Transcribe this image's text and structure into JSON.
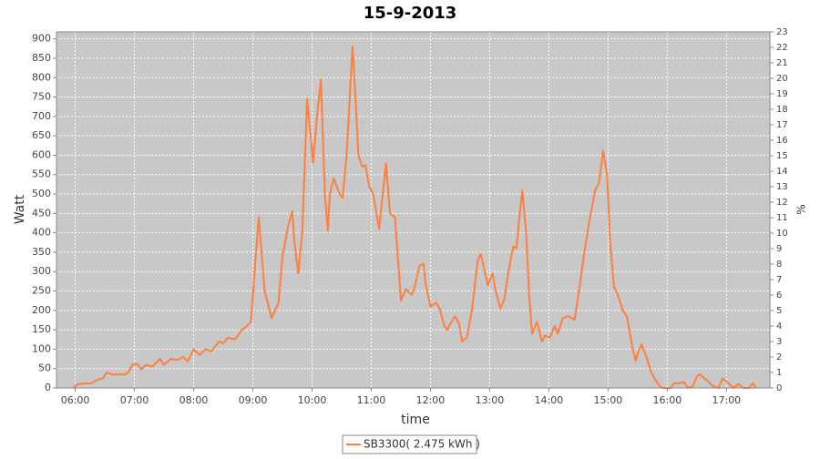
{
  "chart_data": {
    "type": "line",
    "title": "15-9-2013",
    "xlabel": "time",
    "ylabel": "Watt",
    "y2label": "%",
    "x": [
      "05:58",
      "06:03",
      "06:12",
      "06:17",
      "06:21",
      "06:28",
      "06:32",
      "06:37",
      "06:44",
      "06:51",
      "06:54",
      "06:58",
      "07:03",
      "07:07",
      "07:12",
      "07:18",
      "07:26",
      "07:30",
      "07:37",
      "07:44",
      "07:49",
      "07:54",
      "08:00",
      "08:06",
      "08:12",
      "08:18",
      "08:26",
      "08:30",
      "08:35",
      "08:42",
      "08:49",
      "08:54",
      "08:58",
      "09:06",
      "09:12",
      "09:19",
      "09:26",
      "09:30",
      "09:36",
      "09:40",
      "09:42",
      "09:46",
      "09:50",
      "09:53",
      "09:55",
      "10:01",
      "10:05",
      "10:09",
      "10:13",
      "10:16",
      "10:18",
      "10:22",
      "10:28",
      "10:31",
      "10:35",
      "10:41",
      "10:44",
      "10:47",
      "10:51",
      "10:54",
      "10:58",
      "11:02",
      "11:08",
      "11:12",
      "11:15",
      "11:19",
      "11:24",
      "11:28",
      "11:30",
      "11:35",
      "11:41",
      "11:44",
      "11:49",
      "11:53",
      "11:55",
      "12:00",
      "12:06",
      "12:10",
      "12:14",
      "12:17",
      "12:21",
      "12:25",
      "12:29",
      "12:32",
      "12:37",
      "12:42",
      "12:48",
      "12:51",
      "12:55",
      "12:58",
      "13:03",
      "13:06",
      "13:11",
      "13:15",
      "13:19",
      "13:24",
      "13:27",
      "13:33",
      "13:37",
      "13:40",
      "13:43",
      "13:48",
      "13:53",
      "13:56",
      "14:01",
      "14:06",
      "14:09",
      "14:14",
      "14:20",
      "14:26",
      "14:31",
      "14:36",
      "14:41",
      "14:47",
      "14:51",
      "14:55",
      "14:59",
      "15:02",
      "15:06",
      "15:10",
      "15:15",
      "15:19",
      "15:25",
      "15:28",
      "15:30",
      "15:34",
      "15:39",
      "15:43",
      "15:47",
      "15:52",
      "15:55",
      "16:03",
      "16:07",
      "16:12",
      "16:17",
      "16:21",
      "16:26",
      "16:30",
      "16:33",
      "16:40",
      "16:46",
      "16:52",
      "16:56",
      "17:03",
      "17:07",
      "17:12",
      "17:17",
      "17:23",
      "17:27",
      "17:30"
    ],
    "series": [
      {
        "name": "SB3300( 2.475 kWh )",
        "color": "#ff7f3f",
        "values": [
          0,
          10,
          12,
          12,
          20,
          25,
          40,
          35,
          35,
          35,
          42,
          60,
          62,
          48,
          60,
          55,
          75,
          60,
          75,
          72,
          80,
          68,
          100,
          85,
          100,
          95,
          120,
          115,
          130,
          125,
          150,
          160,
          170,
          440,
          250,
          180,
          220,
          340,
          420,
          455,
          380,
          295,
          400,
          600,
          745,
          580,
          700,
          795,
          500,
          405,
          500,
          540,
          500,
          490,
          600,
          880,
          750,
          600,
          570,
          575,
          520,
          500,
          410,
          510,
          580,
          450,
          440,
          300,
          225,
          255,
          240,
          260,
          315,
          320,
          270,
          210,
          220,
          200,
          160,
          150,
          170,
          185,
          165,
          120,
          130,
          200,
          330,
          345,
          300,
          265,
          295,
          250,
          205,
          230,
          300,
          365,
          360,
          510,
          400,
          240,
          140,
          170,
          120,
          135,
          130,
          160,
          140,
          180,
          185,
          175,
          260,
          350,
          430,
          510,
          530,
          612,
          550,
          380,
          260,
          240,
          200,
          185,
          100,
          70,
          90,
          112,
          80,
          45,
          25,
          5,
          0,
          0,
          12,
          12,
          15,
          0,
          5,
          30,
          35,
          20,
          5,
          0,
          25,
          10,
          0,
          10,
          0,
          0,
          12,
          0
        ]
      }
    ],
    "xlim": [
      "05:41",
      "17:44"
    ],
    "xticks": [
      "06:00",
      "07:00",
      "08:00",
      "09:00",
      "10:00",
      "11:00",
      "12:00",
      "13:00",
      "14:00",
      "15:00",
      "16:00",
      "17:00"
    ],
    "ylim": [
      0,
      918
    ],
    "yticks": [
      0,
      50,
      100,
      150,
      200,
      250,
      300,
      350,
      400,
      450,
      500,
      550,
      600,
      650,
      700,
      750,
      800,
      850,
      900
    ],
    "y2lim": [
      0,
      23
    ],
    "y2ticks": [
      0,
      1,
      2,
      3,
      4,
      5,
      6,
      7,
      8,
      9,
      10,
      11,
      12,
      13,
      14,
      15,
      16,
      17,
      18,
      19,
      20,
      21,
      22,
      23
    ],
    "grid": true,
    "legend": "bottom",
    "plot_background": "#c8c8c8"
  }
}
